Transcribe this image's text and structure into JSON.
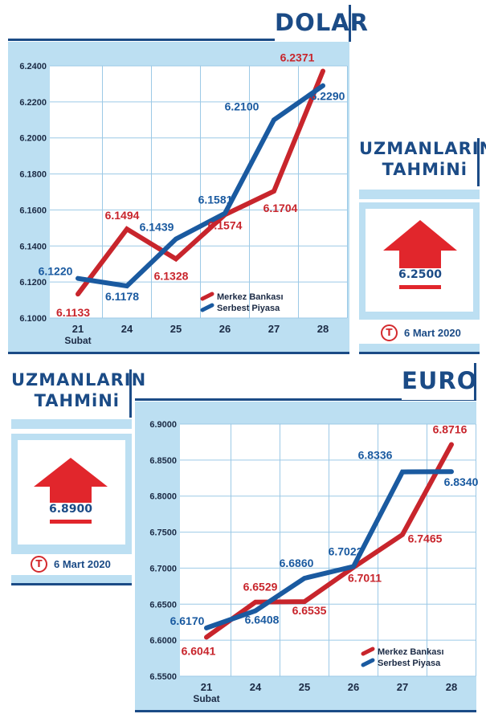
{
  "colors": {
    "brand_blue": "#1b4b86",
    "light_blue": "#bcdff2",
    "red": "#c8252c",
    "series_blue": "#1a5aa0"
  },
  "top": {
    "title": "DOLAR",
    "forecast_title_line1": "UZMANLARIN",
    "forecast_title_line2": "TAHMiNi",
    "forecast_value": "6.2500",
    "forecast_date": "6 Mart 2020",
    "logo_letter": "T"
  },
  "bottom": {
    "title": "EURO",
    "forecast_title_line1": "UZMANLARIN",
    "forecast_title_line2": "TAHMiNi",
    "forecast_value": "6.8900",
    "forecast_date": "6 Mart 2020",
    "logo_letter": "T"
  },
  "chart_data": [
    {
      "type": "line",
      "title": "DOLAR",
      "categories": [
        "21",
        "24",
        "25",
        "26",
        "27",
        "28"
      ],
      "category_sublabel": "Şubat",
      "ylim": [
        6.1,
        6.24
      ],
      "yticks": [
        "6.2400",
        "6.2200",
        "6.2000",
        "6.1800",
        "6.1600",
        "6.1400",
        "6.1200",
        "6.1000"
      ],
      "grid": true,
      "legend_position": "bottom-right",
      "series": [
        {
          "name": "Merkez Bankası",
          "color": "#c8252c",
          "values": [
            6.1133,
            6.1494,
            6.1328,
            6.1574,
            6.1704,
            6.2371
          ],
          "labels": [
            "6.1133",
            "6.1494",
            "6.1328",
            "6.1574",
            "6.1704",
            "6.2371"
          ]
        },
        {
          "name": "Serbest Piyasa",
          "color": "#1a5aa0",
          "values": [
            6.122,
            6.1178,
            6.1439,
            6.1581,
            6.21,
            6.229
          ],
          "labels": [
            "6.1220",
            "6.1178",
            "6.1439",
            "6.1581",
            "6.2100",
            "6.2290"
          ]
        }
      ]
    },
    {
      "type": "line",
      "title": "EURO",
      "categories": [
        "21",
        "24",
        "25",
        "26",
        "27",
        "28"
      ],
      "category_sublabel": "Şubat",
      "ylim": [
        6.55,
        6.9
      ],
      "yticks": [
        "6.9000",
        "6.8500",
        "6.8000",
        "6.7500",
        "6.7000",
        "6.6500",
        "6.6000",
        "6.5500"
      ],
      "grid": true,
      "legend_position": "bottom-right",
      "series": [
        {
          "name": "Merkez Bankası",
          "color": "#c8252c",
          "values": [
            6.6041,
            6.6529,
            6.6535,
            6.7011,
            6.7465,
            6.8716
          ],
          "labels": [
            "6.6041",
            "6.6529",
            "6.6535",
            "6.7011",
            "6.7465",
            "6.8716"
          ]
        },
        {
          "name": "Serbest Piyasa",
          "color": "#1a5aa0",
          "values": [
            6.617,
            6.6408,
            6.686,
            6.7022,
            6.8336,
            6.834
          ],
          "labels": [
            "6.6170",
            "6.6408",
            "6.6860",
            "6.7022",
            "6.8336",
            "6.8340"
          ]
        }
      ]
    }
  ]
}
